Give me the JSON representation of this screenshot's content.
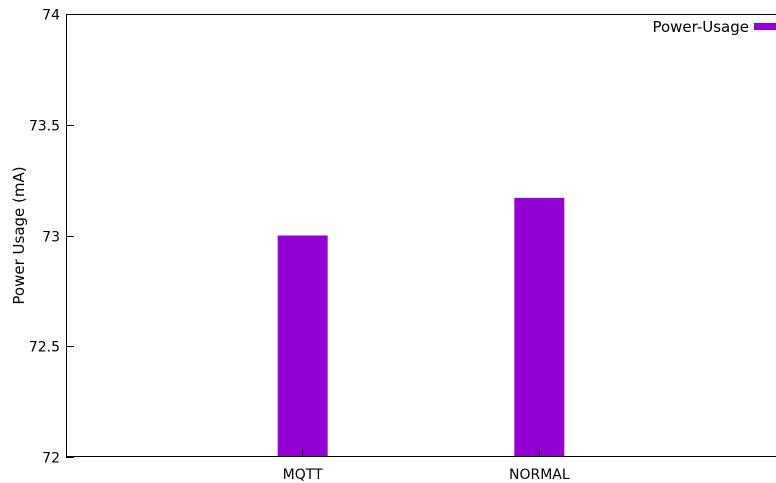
{
  "chart_data": {
    "type": "bar",
    "title": "",
    "xlabel": "",
    "ylabel": "Power Usage (mA)",
    "categories": [
      "MQTT",
      "NORMAL"
    ],
    "series": [
      {
        "name": "Power-Usage",
        "values": [
          73.0,
          73.17
        ],
        "color": "#9400d3"
      }
    ],
    "ylim": [
      72,
      74
    ],
    "yticks": [
      72,
      72.5,
      73,
      73.5,
      74
    ],
    "ytick_labels": [
      "72",
      "72.5",
      "73",
      "73.5",
      "74"
    ],
    "grid": false,
    "legend": {
      "position": "top-right",
      "entries": [
        "Power-Usage"
      ]
    }
  }
}
